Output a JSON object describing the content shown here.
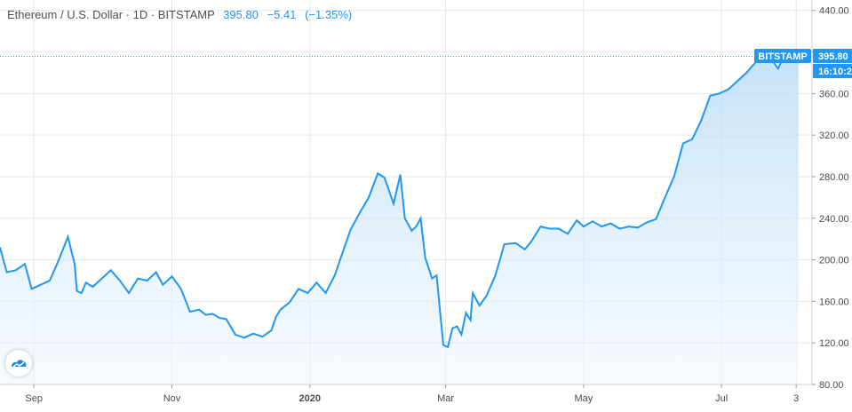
{
  "header": {
    "symbol": "Ethereum / U.S. Dollar · 1D · BITSTAMP",
    "last": "395.80",
    "change": "−5.41",
    "change_pct": "(−1.35%)"
  },
  "price_tag": {
    "exchange": "BITSTAMP",
    "price": "395.80",
    "countdown": "16:10:2"
  },
  "colors": {
    "line": "#2196f3",
    "fill_top": "#b9dcf8",
    "fill_bottom": "#eef6fd",
    "grid": "#e6e6e6"
  },
  "chart_data": {
    "type": "area",
    "title": "Ethereum / U.S. Dollar · 1D · BITSTAMP",
    "xlabel": "",
    "ylabel": "",
    "ylim": [
      80,
      450
    ],
    "y_ticks": [
      80,
      120,
      160,
      200,
      240,
      280,
      320,
      360,
      400,
      440
    ],
    "y_tick_labels": [
      "80.00",
      "120.00",
      "160.00",
      "200.00",
      "240.00",
      "280.00",
      "320.00",
      "360.00",
      "400.00",
      "440.00"
    ],
    "x_ticks": [
      {
        "date": "2019-09-01",
        "label": "Sep",
        "bold": false
      },
      {
        "date": "2019-11-01",
        "label": "Nov",
        "bold": false
      },
      {
        "date": "2020-01-01",
        "label": "2020",
        "bold": true
      },
      {
        "date": "2020-03-01",
        "label": "Mar",
        "bold": false
      },
      {
        "date": "2020-05-01",
        "label": "May",
        "bold": false
      },
      {
        "date": "2020-07-01",
        "label": "Jul",
        "bold": false
      },
      {
        "date": "2020-08-03",
        "label": "3",
        "bold": false
      }
    ],
    "last_value": 395.8,
    "grid": true,
    "series": [
      {
        "x": [
          "2019-08-17",
          "2019-08-20",
          "2019-08-24",
          "2019-08-28",
          "2019-08-31",
          "2019-09-04",
          "2019-09-08",
          "2019-09-12",
          "2019-09-16",
          "2019-09-19",
          "2019-09-20",
          "2019-09-22",
          "2019-09-24",
          "2019-09-27",
          "2019-10-01",
          "2019-10-05",
          "2019-10-09",
          "2019-10-13",
          "2019-10-17",
          "2019-10-21",
          "2019-10-25",
          "2019-10-28",
          "2019-11-01",
          "2019-11-05",
          "2019-11-09",
          "2019-11-13",
          "2019-11-16",
          "2019-11-19",
          "2019-11-22",
          "2019-11-25",
          "2019-11-29",
          "2019-12-03",
          "2019-12-07",
          "2019-12-11",
          "2019-12-15",
          "2019-12-17",
          "2019-12-19",
          "2019-12-23",
          "2019-12-27",
          "2019-12-31",
          "2020-01-04",
          "2020-01-08",
          "2020-01-12",
          "2020-01-15",
          "2020-01-19",
          "2020-01-23",
          "2020-01-27",
          "2020-01-31",
          "2020-02-03",
          "2020-02-07",
          "2020-02-10",
          "2020-02-12",
          "2020-02-15",
          "2020-02-17",
          "2020-02-19",
          "2020-02-21",
          "2020-02-24",
          "2020-02-26",
          "2020-02-29",
          "2020-03-02",
          "2020-03-04",
          "2020-03-06",
          "2020-03-08",
          "2020-03-10",
          "2020-03-12",
          "2020-03-13",
          "2020-03-16",
          "2020-03-19",
          "2020-03-23",
          "2020-03-27",
          "2020-04-01",
          "2020-04-05",
          "2020-04-08",
          "2020-04-12",
          "2020-04-16",
          "2020-04-20",
          "2020-04-24",
          "2020-04-28",
          "2020-05-01",
          "2020-05-05",
          "2020-05-09",
          "2020-05-13",
          "2020-05-17",
          "2020-05-21",
          "2020-05-25",
          "2020-05-29",
          "2020-06-02",
          "2020-06-06",
          "2020-06-10",
          "2020-06-14",
          "2020-06-18",
          "2020-06-22",
          "2020-06-26",
          "2020-06-30",
          "2020-07-04",
          "2020-07-08",
          "2020-07-12",
          "2020-07-16",
          "2020-07-20",
          "2020-07-22",
          "2020-07-24",
          "2020-07-26",
          "2020-07-28",
          "2020-07-30",
          "2020-08-01",
          "2020-08-03",
          "2020-08-04"
        ],
        "values": [
          212,
          188,
          190,
          196,
          172,
          176,
          180,
          200,
          222,
          196,
          170,
          168,
          178,
          174,
          182,
          190,
          180,
          168,
          182,
          180,
          188,
          176,
          184,
          172,
          150,
          152,
          147,
          148,
          144,
          143,
          128,
          125,
          129,
          126,
          132,
          145,
          152,
          159,
          172,
          168,
          178,
          168,
          185,
          204,
          229,
          245,
          260,
          283,
          279,
          254,
          282,
          240,
          228,
          232,
          240,
          202,
          182,
          185,
          118,
          116,
          134,
          136,
          128,
          149,
          142,
          168,
          156,
          165,
          185,
          215,
          216,
          210,
          218,
          232,
          230,
          230,
          225,
          238,
          232,
          237,
          232,
          235,
          230,
          232,
          231,
          236,
          239,
          260,
          280,
          312,
          316,
          334,
          358,
          360,
          364,
          372,
          380,
          390,
          398,
          401,
          390,
          384,
          393,
          396,
          394,
          395.8,
          395.8
        ]
      }
    ]
  }
}
